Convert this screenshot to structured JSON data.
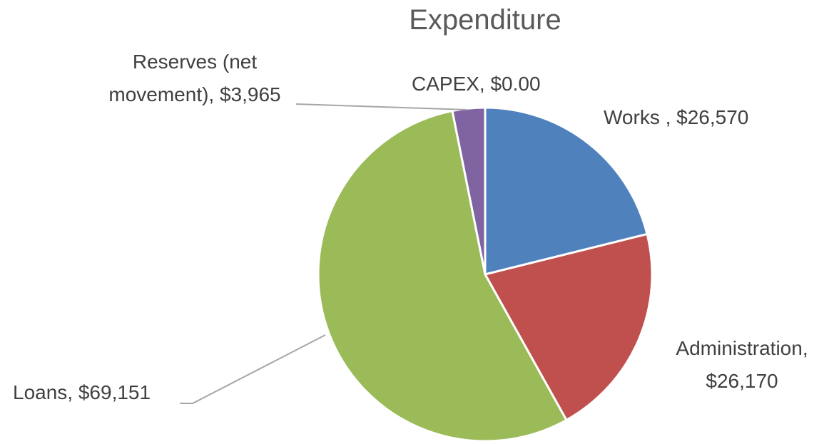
{
  "chart_data": {
    "type": "pie",
    "title": "Expenditure",
    "categories": [
      "Works ",
      "Administration",
      "Loans",
      "Reserves (net movement)",
      "CAPEX"
    ],
    "values": [
      26570,
      26170,
      69151,
      3965,
      0
    ],
    "value_labels": [
      "Works , $26,570",
      "Administration, $26,170",
      "Loans, $69,151",
      "Reserves (net movement), $3,965",
      "CAPEX, $0.00"
    ],
    "colors": [
      "#4f81bd",
      "#c0504d",
      "#9bbb59",
      "#8064a2",
      "#4bacc6"
    ]
  }
}
